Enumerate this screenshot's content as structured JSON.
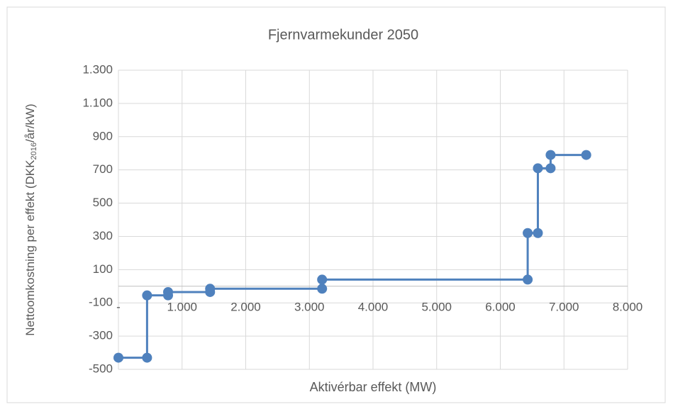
{
  "chart_data": {
    "type": "scatter-line",
    "title": "Fjernvarmekunder 2050",
    "x_label": "Aktivérbar effekt (MW)",
    "y_label": [
      "Nettoomkostning per effekt (DKK",
      "2016",
      "/år/kW)"
    ],
    "x": [
      0,
      450,
      450,
      780,
      780,
      1440,
      1440,
      3200,
      3200,
      6430,
      6430,
      6590,
      6590,
      6790,
      6790,
      7350
    ],
    "values": [
      -430,
      -430,
      -55,
      -55,
      -35,
      -35,
      -15,
      -15,
      40,
      40,
      320,
      320,
      710,
      710,
      790,
      790
    ],
    "color": "#4f81bd",
    "xlim": [
      0,
      8000
    ],
    "xticks": [
      {
        "value": 0,
        "label": "-"
      },
      {
        "value": 1000,
        "label": "1.000"
      },
      {
        "value": 2000,
        "label": "2.000"
      },
      {
        "value": 3000,
        "label": "3.000"
      },
      {
        "value": 4000,
        "label": "4.000"
      },
      {
        "value": 5000,
        "label": "5.000"
      },
      {
        "value": 6000,
        "label": "6.000"
      },
      {
        "value": 7000,
        "label": "7.000"
      },
      {
        "value": 8000,
        "label": "8.000"
      }
    ],
    "ylim": [
      -500,
      1300
    ],
    "yticks": [
      -500,
      -300,
      -100,
      100,
      300,
      500,
      700,
      900,
      {
        "value": 1100,
        "label": "1.100"
      },
      {
        "value": 1300,
        "label": "1.300"
      }
    ],
    "grid": true
  }
}
